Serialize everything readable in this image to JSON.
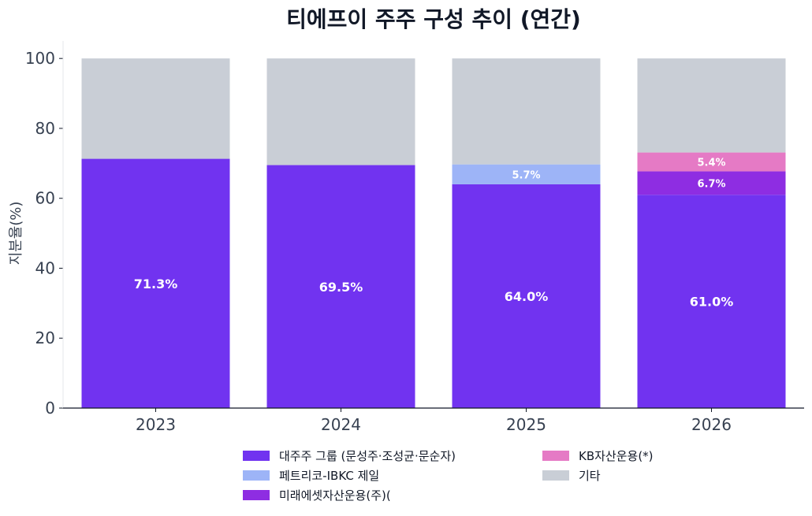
{
  "chart_data": {
    "type": "bar",
    "stacked": true,
    "title": "티에프이 주주 구성 추이 (연간)",
    "ylabel": "지분율(%)",
    "xlabel": "",
    "ylim": [
      0,
      100
    ],
    "yticks": [
      0,
      20,
      40,
      60,
      80,
      100
    ],
    "grid": false,
    "legend_position": "bottom",
    "categories": [
      "2023",
      "2024",
      "2025",
      "2026"
    ],
    "series": [
      {
        "name": "대주주 그룹 (문성주·조성균·문순자)",
        "color": "#7133f0",
        "values": [
          71.3,
          69.5,
          64.0,
          61.0
        ],
        "labels": [
          "71.3%",
          "69.5%",
          "64.0%",
          "61.0%"
        ]
      },
      {
        "name": "페트리코-IBKC 제일",
        "color": "#9db4f7",
        "values": [
          0,
          0,
          5.7,
          0
        ],
        "labels": [
          "",
          "",
          "5.7%",
          ""
        ]
      },
      {
        "name": "미래에셋자산운용(주)(",
        "color": "#8e2de2",
        "values": [
          0,
          0,
          0,
          6.7
        ],
        "labels": [
          "",
          "",
          "",
          "6.7%"
        ]
      },
      {
        "name": "KB자산운용(*)",
        "color": "#e57ac5",
        "values": [
          0,
          0,
          0,
          5.4
        ],
        "labels": [
          "",
          "",
          "",
          "5.4%"
        ]
      },
      {
        "name": "기타",
        "color": "#c9ced6",
        "values": [
          28.7,
          30.5,
          30.3,
          26.9
        ],
        "labels": [
          "",
          "",
          "",
          ""
        ]
      }
    ]
  }
}
